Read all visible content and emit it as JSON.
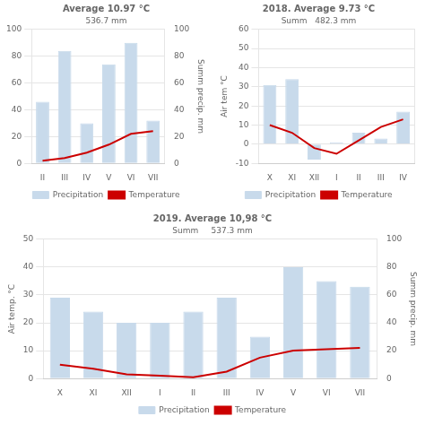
{
  "chart_data": [
    {
      "type": "bar",
      "title": "Average 10.97 °C",
      "subtitle": "536.7 mm",
      "categories": [
        "II",
        "III",
        "IV",
        "V",
        "VI",
        "VII"
      ],
      "series": [
        {
          "name": "Precipitation",
          "type": "bar",
          "color": "#c8daeb",
          "values": [
            46,
            84,
            30,
            74,
            90,
            32
          ]
        },
        {
          "name": "Temperature",
          "type": "line",
          "color": "#cc0000",
          "axis": "y2",
          "values": [
            2,
            4,
            8,
            14,
            22,
            24
          ]
        }
      ],
      "ylim": [
        0,
        100
      ],
      "yticks": [
        0,
        20,
        40,
        60,
        80,
        100
      ],
      "y2lim": [
        0,
        100
      ],
      "y2ticks": [
        0,
        20,
        40,
        60,
        80,
        100
      ],
      "y2label": "Summ precip. mm",
      "grid": true,
      "legend": "bottom"
    },
    {
      "type": "bar",
      "title": "2018. Average 9.73 °C",
      "subtitle": "Summ   482.3 mm",
      "categories": [
        "X",
        "XI",
        "XII",
        "I",
        "II",
        "III",
        "IV"
      ],
      "series": [
        {
          "name": "Precipitation",
          "type": "bar",
          "color": "#c8daeb",
          "values": [
            31,
            34,
            -8,
            1,
            6,
            3,
            17
          ]
        },
        {
          "name": "Temperature",
          "type": "line",
          "color": "#cc0000",
          "axis": "y2",
          "values": [
            10,
            6,
            -2,
            -5,
            2,
            9,
            13
          ]
        }
      ],
      "ylim": [
        -10,
        60
      ],
      "yticks": [
        -10,
        0,
        10,
        20,
        30,
        40,
        50,
        60
      ],
      "y2lim": [
        -10,
        60
      ],
      "ylabel": "Air tem °C",
      "grid": true,
      "legend": "bottom"
    },
    {
      "type": "bar",
      "title": "2019. Average 10,98 °C",
      "subtitle": "Summ     537.3 mm",
      "categories": [
        "X",
        "XI",
        "XII",
        "I",
        "II",
        "III",
        "IV",
        "V",
        "VI",
        "VII"
      ],
      "series": [
        {
          "name": "Precipitation",
          "type": "bar",
          "color": "#c8daeb",
          "values": [
            29,
            24,
            20,
            20,
            24,
            29,
            15,
            40,
            35,
            33
          ]
        },
        {
          "name": "Temperature",
          "type": "line",
          "color": "#cc0000",
          "axis": "y2",
          "values": [
            10,
            7,
            3,
            2,
            1,
            5,
            15,
            20,
            21,
            22
          ]
        }
      ],
      "ylim": [
        0,
        50
      ],
      "yticks": [
        0,
        10,
        20,
        30,
        40,
        50
      ],
      "y2lim": [
        0,
        100
      ],
      "y2ticks": [
        0,
        20,
        40,
        60,
        80,
        100
      ],
      "ylabel": "Air temp. °C",
      "y2label": "Summ precip. mm",
      "grid": true,
      "legend": "bottom"
    }
  ]
}
